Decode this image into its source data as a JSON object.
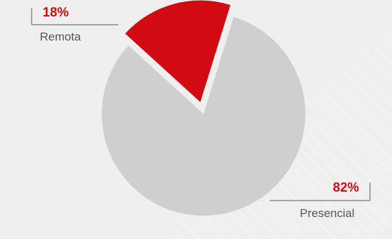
{
  "chart_data": {
    "type": "pie",
    "slices": [
      {
        "label": "Remota",
        "value": 18,
        "display": "18%",
        "color": "#d20a11",
        "exploded": true
      },
      {
        "label": "Presencial",
        "value": 82,
        "display": "82%",
        "color": "#cfcfcf",
        "exploded": false
      }
    ],
    "title": "",
    "legend": "none",
    "background_color": "#efefef"
  }
}
